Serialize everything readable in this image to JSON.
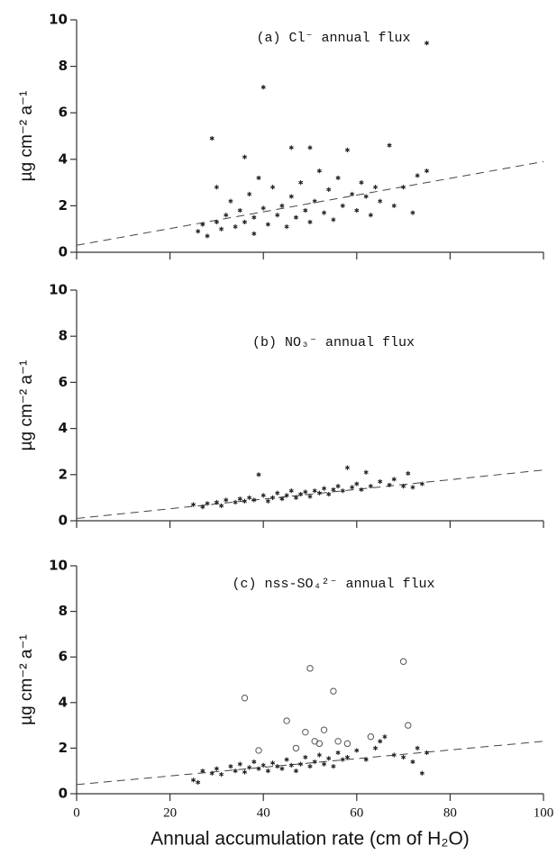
{
  "chart_data": [
    {
      "type": "scatter",
      "title": "(a) Cl⁻ annual flux",
      "ylabel": "µg cm⁻² a⁻¹",
      "xlim": [
        0,
        100
      ],
      "ylim": [
        0,
        10
      ],
      "xticks": [
        0,
        20,
        40,
        60,
        80,
        100
      ],
      "yticks": [
        0,
        2,
        4,
        6,
        8,
        10
      ],
      "show_xtick_labels": false,
      "series": [
        {
          "marker": "asterisk",
          "color": "#222",
          "x": [
            26,
            27,
            28,
            29,
            30,
            30,
            31,
            32,
            33,
            34,
            35,
            36,
            36,
            37,
            38,
            38,
            39,
            40,
            40,
            41,
            42,
            43,
            44,
            45,
            46,
            46,
            47,
            48,
            49,
            50,
            50,
            51,
            52,
            53,
            54,
            55,
            56,
            57,
            58,
            59,
            60,
            61,
            62,
            63,
            64,
            65,
            67,
            68,
            70,
            72,
            73,
            75,
            75
          ],
          "y": [
            0.9,
            1.2,
            0.7,
            4.9,
            1.3,
            2.8,
            1.0,
            1.6,
            2.2,
            1.1,
            1.8,
            4.1,
            1.3,
            2.5,
            1.5,
            0.8,
            3.2,
            1.9,
            7.1,
            1.2,
            2.8,
            1.6,
            2.0,
            1.1,
            4.5,
            2.4,
            1.5,
            3.0,
            1.8,
            1.3,
            4.5,
            2.2,
            3.5,
            1.7,
            2.7,
            1.4,
            3.2,
            2.0,
            4.4,
            2.5,
            1.8,
            3.0,
            2.4,
            1.6,
            2.8,
            2.2,
            4.6,
            2.0,
            2.8,
            1.7,
            3.3,
            3.5,
            9.0
          ]
        }
      ],
      "trend": {
        "x": [
          0,
          100
        ],
        "y": [
          0.3,
          3.9
        ]
      }
    },
    {
      "type": "scatter",
      "title": "(b) NO₃⁻ annual flux",
      "ylabel": "µg cm⁻² a⁻¹",
      "xlim": [
        0,
        100
      ],
      "ylim": [
        0,
        10
      ],
      "xticks": [
        0,
        20,
        40,
        60,
        80,
        100
      ],
      "yticks": [
        0,
        2,
        4,
        6,
        8,
        10
      ],
      "show_xtick_labels": false,
      "series": [
        {
          "marker": "asterisk",
          "color": "#222",
          "x": [
            25,
            27,
            28,
            30,
            31,
            32,
            34,
            35,
            36,
            37,
            38,
            39,
            40,
            41,
            42,
            43,
            44,
            45,
            46,
            47,
            48,
            49,
            50,
            51,
            52,
            53,
            54,
            55,
            56,
            57,
            58,
            59,
            60,
            61,
            62,
            63,
            65,
            67,
            68,
            70,
            71,
            72,
            74
          ],
          "y": [
            0.7,
            0.6,
            0.75,
            0.8,
            0.65,
            0.9,
            0.8,
            0.95,
            0.85,
            1.0,
            0.9,
            2.0,
            1.1,
            0.85,
            1.0,
            1.2,
            0.95,
            1.1,
            1.3,
            1.0,
            1.15,
            1.25,
            1.05,
            1.3,
            1.2,
            1.4,
            1.15,
            1.35,
            1.5,
            1.3,
            2.3,
            1.45,
            1.6,
            1.35,
            2.1,
            1.5,
            1.7,
            1.55,
            1.8,
            1.5,
            2.05,
            1.45,
            1.6
          ]
        }
      ],
      "trend": {
        "x": [
          0,
          100
        ],
        "y": [
          0.1,
          2.2
        ]
      }
    },
    {
      "type": "scatter",
      "title": "(c) nss-SO₄²⁻ annual flux",
      "ylabel": "µg cm⁻² a⁻¹",
      "xlabel": "Annual accumulation rate (cm of H₂O)",
      "xlim": [
        0,
        100
      ],
      "ylim": [
        0,
        10
      ],
      "xticks": [
        0,
        20,
        40,
        60,
        80,
        100
      ],
      "yticks": [
        0,
        2,
        4,
        6,
        8,
        10
      ],
      "show_xtick_labels": true,
      "series": [
        {
          "marker": "asterisk",
          "color": "#222",
          "x": [
            25,
            26,
            27,
            29,
            30,
            31,
            33,
            34,
            35,
            36,
            37,
            38,
            39,
            40,
            41,
            42,
            43,
            44,
            45,
            46,
            47,
            48,
            49,
            50,
            51,
            52,
            53,
            54,
            55,
            56,
            57,
            58,
            60,
            62,
            64,
            65,
            66,
            68,
            70,
            72,
            73,
            74,
            75
          ],
          "y": [
            0.6,
            0.5,
            1.0,
            0.9,
            1.1,
            0.85,
            1.2,
            1.0,
            1.3,
            0.95,
            1.15,
            1.4,
            1.1,
            1.25,
            1.0,
            1.35,
            1.2,
            1.1,
            1.5,
            1.25,
            1.0,
            1.3,
            1.6,
            1.2,
            1.4,
            1.7,
            1.3,
            1.55,
            1.2,
            1.8,
            1.5,
            1.6,
            1.9,
            1.5,
            2.0,
            2.3,
            2.5,
            1.7,
            1.6,
            1.4,
            2.0,
            0.9,
            1.8
          ]
        },
        {
          "marker": "circle",
          "color": "#555",
          "x": [
            36,
            39,
            45,
            47,
            49,
            50,
            51,
            52,
            53,
            55,
            56,
            58,
            63,
            70,
            71
          ],
          "y": [
            4.2,
            1.9,
            3.2,
            2.0,
            2.7,
            5.5,
            2.3,
            2.2,
            2.8,
            4.5,
            2.3,
            2.2,
            2.5,
            5.8,
            3.0
          ]
        }
      ],
      "trend": {
        "x": [
          0,
          100
        ],
        "y": [
          0.4,
          2.3
        ]
      }
    }
  ]
}
